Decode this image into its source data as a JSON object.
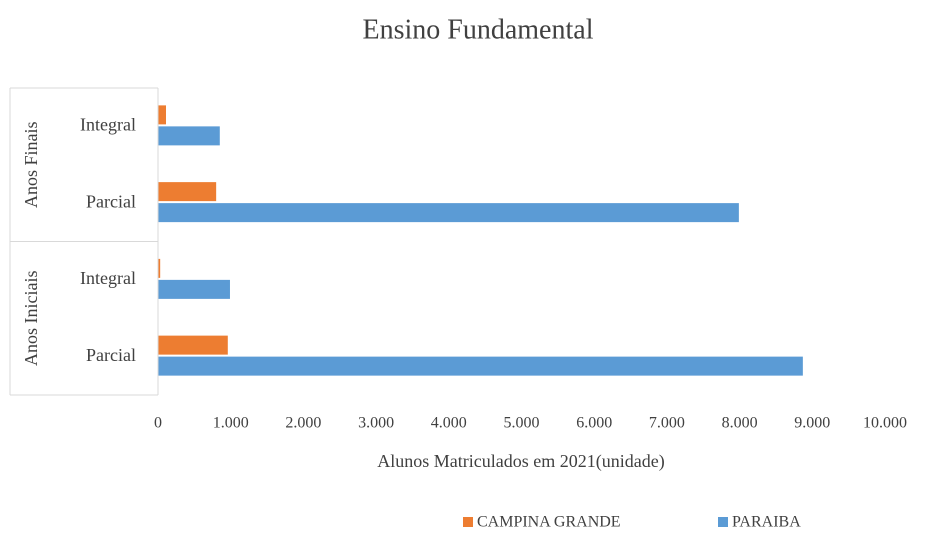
{
  "chart_data": {
    "type": "bar",
    "orientation": "horizontal",
    "title": "Ensino Fundamental",
    "x_label": "Alunos Matriculados em 2021(unidade)",
    "groups": [
      {
        "name": "Anos Finais",
        "categories": [
          "Integral",
          "Parcial"
        ]
      },
      {
        "name": "Anos Iniciais",
        "categories": [
          "Integral",
          "Parcial"
        ]
      }
    ],
    "series": [
      {
        "name": "CAMPINA GRANDE",
        "color": "#ed7d31",
        "values": [
          110,
          800,
          30,
          960
        ]
      },
      {
        "name": "PARAIBA",
        "color": "#5b9bd5",
        "values": [
          850,
          7990,
          990,
          8870
        ]
      }
    ],
    "xlim": [
      0,
      10000
    ],
    "xticks": [
      0,
      {
        "value": 1000,
        "label": "1.000"
      },
      {
        "value": 2000,
        "label": "2.000"
      },
      {
        "value": 3000,
        "label": "3.000"
      },
      {
        "value": 4000,
        "label": "4.000"
      },
      {
        "value": 5000,
        "label": "5.000"
      },
      {
        "value": 6000,
        "label": "6.000"
      },
      {
        "value": 7000,
        "label": "7.000"
      },
      {
        "value": 8000,
        "label": "8.000"
      },
      {
        "value": 9000,
        "label": "9.000"
      },
      {
        "value": 10000,
        "label": "10.000"
      }
    ],
    "legend": "bottom"
  }
}
